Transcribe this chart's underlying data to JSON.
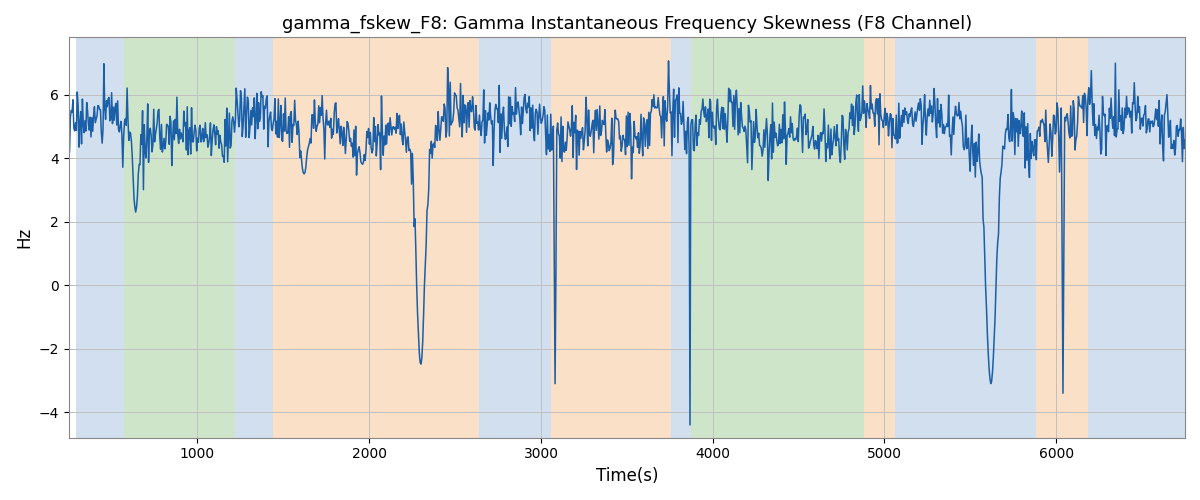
{
  "title": "gamma_fskew_F8: Gamma Instantaneous Frequency Skewness (F8 Channel)",
  "xlabel": "Time(s)",
  "ylabel": "Hz",
  "xlim": [
    250,
    6750
  ],
  "ylim": [
    -4.8,
    7.8
  ],
  "yticks": [
    -4,
    -2,
    0,
    2,
    4,
    6
  ],
  "xticks": [
    1000,
    2000,
    3000,
    4000,
    5000,
    6000
  ],
  "line_color": "#1a5fa8",
  "line_width": 1.1,
  "background_color": "#ffffff",
  "grid_color": "#c0c0c0",
  "figsize": [
    12,
    5
  ],
  "dpi": 100,
  "colored_bands": [
    {
      "xmin": 295,
      "xmax": 575,
      "color": "#aec6e0",
      "alpha": 0.55
    },
    {
      "xmin": 575,
      "xmax": 1220,
      "color": "#a8d0a0",
      "alpha": 0.55
    },
    {
      "xmin": 1220,
      "xmax": 1440,
      "color": "#aec6e0",
      "alpha": 0.55
    },
    {
      "xmin": 1440,
      "xmax": 2640,
      "color": "#f5c898",
      "alpha": 0.55
    },
    {
      "xmin": 2640,
      "xmax": 3060,
      "color": "#aec6e0",
      "alpha": 0.55
    },
    {
      "xmin": 3060,
      "xmax": 3760,
      "color": "#f5c898",
      "alpha": 0.55
    },
    {
      "xmin": 3760,
      "xmax": 3875,
      "color": "#aec6e0",
      "alpha": 0.55
    },
    {
      "xmin": 3875,
      "xmax": 4880,
      "color": "#a8d0a0",
      "alpha": 0.55
    },
    {
      "xmin": 4880,
      "xmax": 5060,
      "color": "#f5c898",
      "alpha": 0.55
    },
    {
      "xmin": 5060,
      "xmax": 5880,
      "color": "#aec6e0",
      "alpha": 0.55
    },
    {
      "xmin": 5880,
      "xmax": 6185,
      "color": "#f5c898",
      "alpha": 0.55
    },
    {
      "xmin": 6185,
      "xmax": 6750,
      "color": "#aec6e0",
      "alpha": 0.55
    }
  ],
  "seed": 17,
  "n_points": 1300,
  "x_start": 250,
  "x_end": 6750,
  "base_mean": 5.0,
  "noise_std": 0.45
}
